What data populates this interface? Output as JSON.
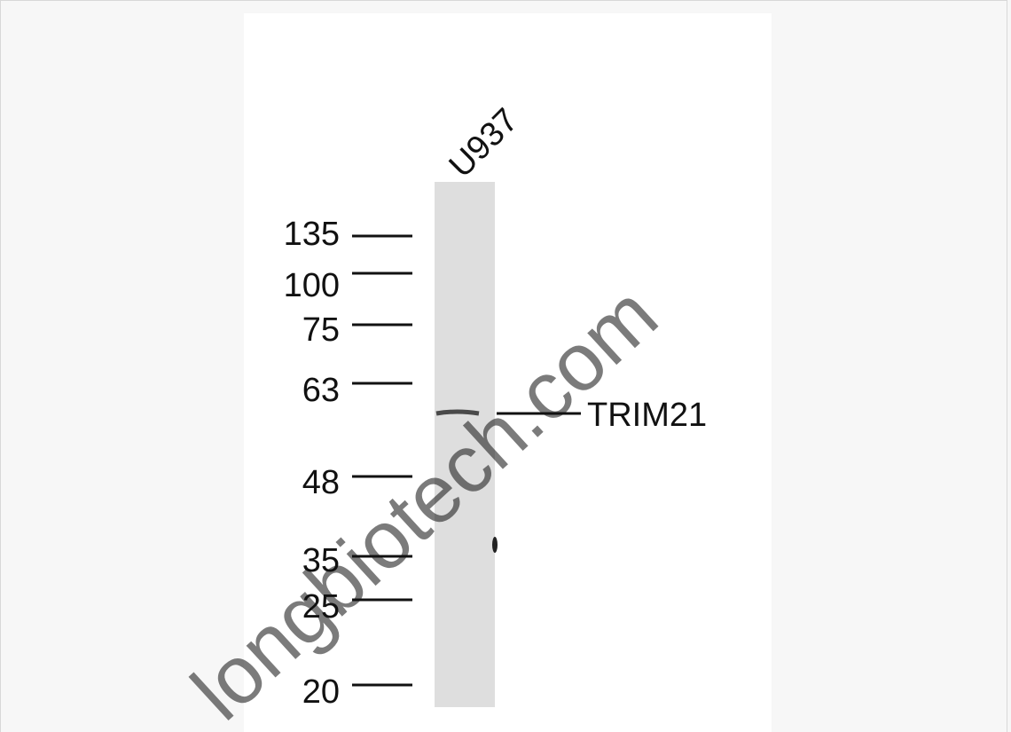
{
  "lane_label": "U937",
  "markers": [
    "135",
    "100",
    "75",
    "63",
    "48",
    "35",
    "25",
    "20"
  ],
  "band_label": "TRIM21",
  "watermark": "longbiotech.com"
}
